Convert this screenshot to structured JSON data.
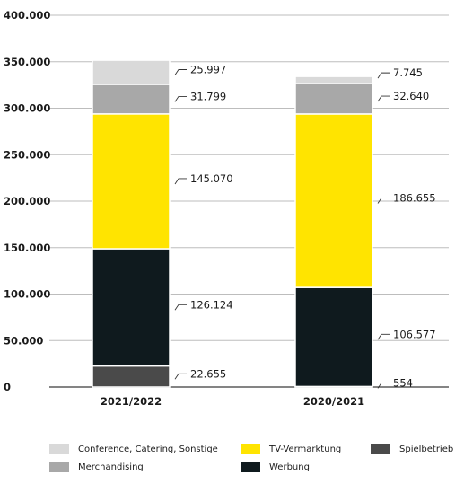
{
  "chart_data": {
    "type": "bar",
    "stacked": true,
    "categories": [
      "2021/2022",
      "2020/2021"
    ],
    "ylim": [
      0,
      400000
    ],
    "yticks": [
      "0",
      "50.000",
      "100.000",
      "150.000",
      "200.000",
      "250.000",
      "300.000",
      "350.000",
      "400.000"
    ],
    "ytick_values": [
      0,
      50000,
      100000,
      150000,
      200000,
      250000,
      300000,
      350000,
      400000
    ],
    "grid": true,
    "legend_position": "bottom",
    "series": [
      {
        "name": "Spielbetrieb",
        "color": "#4a4a4a",
        "values": [
          22655,
          554
        ],
        "labels": [
          "22.655",
          "554"
        ]
      },
      {
        "name": "Werbung",
        "color": "#0f1a1e",
        "values": [
          126124,
          106577
        ],
        "labels": [
          "126.124",
          "106.577"
        ]
      },
      {
        "name": "TV-Vermarktung",
        "color": "#ffe400",
        "values": [
          145070,
          186655
        ],
        "labels": [
          "145.070",
          "186.655"
        ]
      },
      {
        "name": "Merchandising",
        "color": "#a8a8a8",
        "values": [
          31799,
          32640
        ],
        "labels": [
          "31.799",
          "32.640"
        ]
      },
      {
        "name": "Conference, Catering, Sonstige",
        "color": "#d9d9d9",
        "values": [
          25997,
          7745
        ],
        "labels": [
          "25.997",
          "7.745"
        ]
      }
    ]
  },
  "legend": {
    "items": [
      {
        "name": "Conference, Catering, Sonstige",
        "color": "#d9d9d9"
      },
      {
        "name": "TV-Vermarktung",
        "color": "#ffe400"
      },
      {
        "name": "Spielbetrieb",
        "color": "#4a4a4a"
      },
      {
        "name": "Merchandising",
        "color": "#a8a8a8"
      },
      {
        "name": "Werbung",
        "color": "#0f1a1e"
      }
    ]
  }
}
